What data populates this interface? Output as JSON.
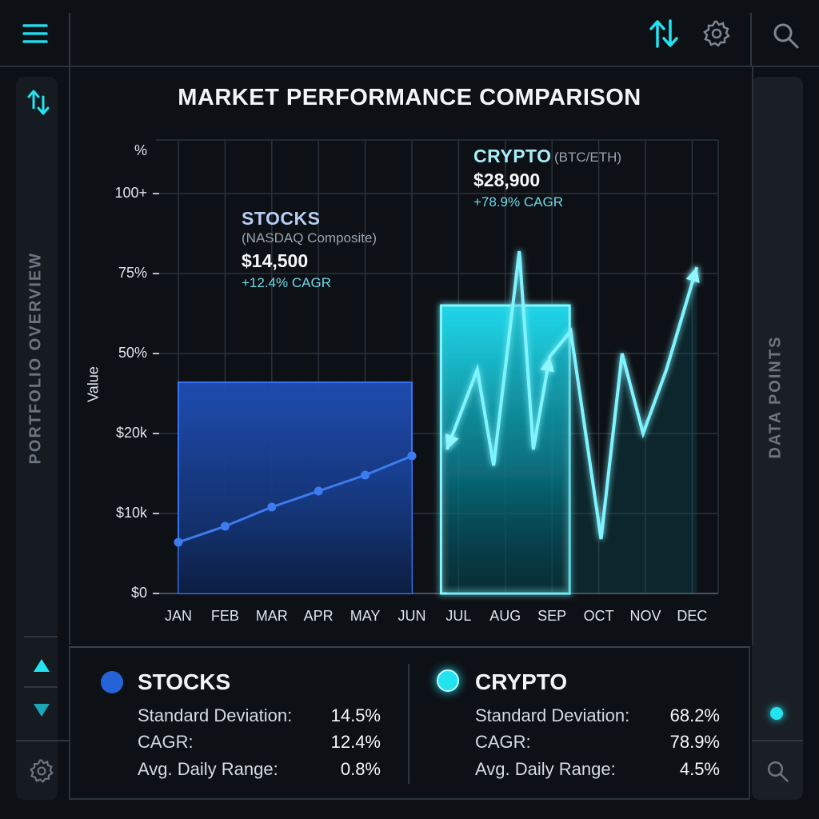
{
  "colors": {
    "stocks": "#2563d6",
    "crypto": "#22e3f0",
    "stocks_label": "#b7cdf2",
    "crypto_label": "#a8ecf6",
    "cagr": "#6fd8e6"
  },
  "toolbar": {
    "menu_icon": "hamburger-icon",
    "sort_icon": "sort-arrows-icon",
    "settings_icon": "gear-icon",
    "search_icon": "search-icon"
  },
  "sidebar_left": {
    "label": "PORTFOLIO OVERVIEW"
  },
  "sidebar_right": {
    "label": "DATA POINTS"
  },
  "chart_data": {
    "type": "bar",
    "title": "MARKET PERFORMANCE COMPARISON",
    "ylabel": "Value",
    "y_unit_label": "%",
    "y_ticks": [
      "$0",
      "$10k",
      "$20k",
      "50%",
      "75%",
      "100+"
    ],
    "categories": [
      "JAN",
      "FEB",
      "MAR",
      "APR",
      "MAY",
      "JUN",
      "JUL",
      "AUG",
      "SEP",
      "OCT",
      "NOV",
      "DEC"
    ],
    "grid": true,
    "bars": [
      {
        "name": "STOCKS",
        "from": "JAN",
        "to": "JUN",
        "level": 66
      },
      {
        "name": "CRYPTO",
        "from": "JUL",
        "to": "SEP",
        "level": 90
      }
    ],
    "series": [
      {
        "name": "STOCKS",
        "x": [
          "JAN",
          "FEB",
          "MAR",
          "APR",
          "MAY",
          "JUN"
        ],
        "values": [
          16,
          21,
          27,
          32,
          37,
          43
        ]
      },
      {
        "name": "CRYPTO",
        "x": [
          5.75,
          6.4,
          6.75,
          7.3,
          7.6,
          7.95,
          8.4,
          9.05,
          9.5,
          9.95,
          10.45,
          11.1
        ],
        "values": [
          45,
          70,
          40,
          107,
          45,
          74,
          82,
          17,
          75,
          50,
          70,
          102
        ]
      }
    ],
    "annotations": [
      {
        "name": "STOCKS",
        "subtitle": "(NASDAQ Composite)",
        "value": "$14,500",
        "cagr": "+12.4% CAGR"
      },
      {
        "name": "CRYPTO",
        "subtitle": "(BTC/ETH)",
        "value": "$28,900",
        "cagr": "+78.9% CAGR"
      }
    ]
  },
  "stats": {
    "stocks": {
      "title": "STOCKS",
      "rows": [
        {
          "label": "Standard Deviation:",
          "value": "14.5%"
        },
        {
          "label": "CAGR:",
          "value": "12.4%"
        },
        {
          "label": "Avg. Daily Range:",
          "value": "0.8%"
        }
      ]
    },
    "crypto": {
      "title": "CRYPTO",
      "rows": [
        {
          "label": "Standard Deviation:",
          "value": "68.2%"
        },
        {
          "label": "CAGR:",
          "value": "78.9%"
        },
        {
          "label": "Avg. Daily Range:",
          "value": "4.5%"
        }
      ]
    }
  }
}
